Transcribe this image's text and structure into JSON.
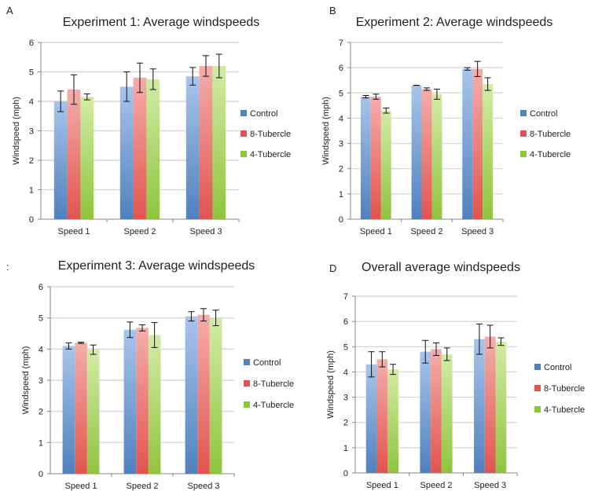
{
  "legend": {
    "control": "Control",
    "tubercle8": "8-Tubercle",
    "tubercle4": "4-Tubercle"
  },
  "colors": {
    "control": "#4f81bd",
    "control_light": "#a9c4ea",
    "tubercle8": "#e2544f",
    "tubercle8_light": "#f3aeaa",
    "tubercle4": "#8fc43e",
    "tubercle4_light": "#d3eba5",
    "gridline": "#d9d9d9",
    "axis": "#868686",
    "text": "#222222"
  },
  "chart_data": [
    {
      "panel_label": "A",
      "type": "bar",
      "title": "Experiment 1: Average windspeeds",
      "xlabel": "",
      "ylabel": "Windspeed (mph)",
      "ylim": [
        0,
        6
      ],
      "yticks": [
        0,
        1,
        2,
        3,
        4,
        5,
        6
      ],
      "categories": [
        "Speed 1",
        "Speed 2",
        "Speed 3"
      ],
      "legend_position": "right",
      "grid": true,
      "series": [
        {
          "name": "Control",
          "values": [
            4.0,
            4.5,
            4.85
          ],
          "errors": [
            0.35,
            0.5,
            0.3
          ]
        },
        {
          "name": "8-Tubercle",
          "values": [
            4.4,
            4.8,
            5.2
          ],
          "errors": [
            0.5,
            0.5,
            0.35
          ]
        },
        {
          "name": "4-Tubercle",
          "values": [
            4.15,
            4.75,
            5.2
          ],
          "errors": [
            0.1,
            0.35,
            0.4
          ]
        }
      ]
    },
    {
      "panel_label": "B",
      "type": "bar",
      "title": "Experiment 2: Average windspeeds",
      "xlabel": "",
      "ylabel": "Windspeed (mph)",
      "ylim": [
        0,
        7
      ],
      "yticks": [
        0,
        1,
        2,
        3,
        4,
        5,
        6,
        7
      ],
      "categories": [
        "Speed 1",
        "Speed 2",
        "Speed 3"
      ],
      "legend_position": "right",
      "grid": true,
      "series": [
        {
          "name": "Control",
          "values": [
            4.85,
            5.3,
            5.95
          ],
          "errors": [
            0.05,
            0.0,
            0.05
          ]
        },
        {
          "name": "8-Tubercle",
          "values": [
            4.85,
            5.15,
            5.95
          ],
          "errors": [
            0.1,
            0.05,
            0.3
          ]
        },
        {
          "name": "4-Tubercle",
          "values": [
            4.3,
            4.95,
            5.35
          ],
          "errors": [
            0.1,
            0.2,
            0.25
          ]
        }
      ]
    },
    {
      "panel_label": ":",
      "type": "bar",
      "title": "Experiment 3: Average windspeeds",
      "xlabel": "",
      "ylabel": "Windspeed (mph)",
      "ylim": [
        0,
        6
      ],
      "yticks": [
        0,
        1,
        2,
        3,
        4,
        5,
        6
      ],
      "categories": [
        "Speed 1",
        "Speed 2",
        "Speed 3"
      ],
      "legend_position": "right",
      "grid": true,
      "series": [
        {
          "name": "Control",
          "values": [
            4.1,
            4.62,
            5.05
          ],
          "errors": [
            0.1,
            0.25,
            0.15
          ]
        },
        {
          "name": "8-Tubercle",
          "values": [
            4.2,
            4.68,
            5.1
          ],
          "errors": [
            0.02,
            0.1,
            0.2
          ]
        },
        {
          "name": "4-Tubercle",
          "values": [
            3.98,
            4.45,
            5.0
          ],
          "errors": [
            0.15,
            0.4,
            0.25
          ]
        }
      ]
    },
    {
      "panel_label": "D",
      "type": "bar",
      "title": "Overall average windspeeds",
      "xlabel": "",
      "ylabel": "Windspeed (mph)",
      "ylim": [
        0,
        7
      ],
      "yticks": [
        0,
        1,
        2,
        3,
        4,
        5,
        6,
        7
      ],
      "categories": [
        "Speed 1",
        "Speed 2",
        "Speed 3"
      ],
      "legend_position": "right",
      "grid": true,
      "series": [
        {
          "name": "Control",
          "values": [
            4.3,
            4.8,
            5.3
          ],
          "errors": [
            0.5,
            0.45,
            0.6
          ]
        },
        {
          "name": "8-Tubercle",
          "values": [
            4.5,
            4.9,
            5.4
          ],
          "errors": [
            0.3,
            0.25,
            0.45
          ]
        },
        {
          "name": "4-Tubercle",
          "values": [
            4.1,
            4.7,
            5.2
          ],
          "errors": [
            0.2,
            0.25,
            0.15
          ]
        }
      ]
    }
  ]
}
